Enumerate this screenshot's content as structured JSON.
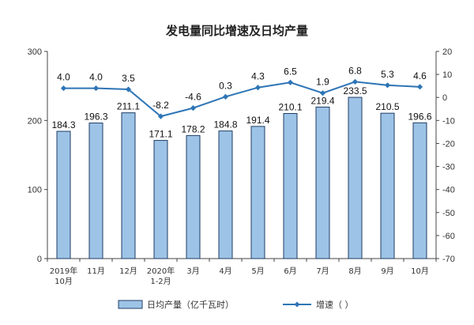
{
  "chart_data": {
    "type": "bar+line",
    "title": "发电量同比增速及日均产量",
    "categories": [
      [
        "2019年",
        "10月"
      ],
      [
        "11月"
      ],
      [
        "12月"
      ],
      [
        "2020年",
        "1-2月"
      ],
      [
        "3月"
      ],
      [
        "4月"
      ],
      [
        "5月"
      ],
      [
        "6月"
      ],
      [
        "7月"
      ],
      [
        "8月"
      ],
      [
        "9月"
      ],
      [
        "10月"
      ]
    ],
    "series": [
      {
        "name": "日均产量（亿千瓦时）",
        "type": "bar",
        "axis": "left",
        "color": "#9dc3e6",
        "stroke": "#1f3d66",
        "values": [
          184.3,
          196.3,
          211.1,
          171.1,
          178.2,
          184.8,
          191.4,
          210.1,
          219.4,
          233.5,
          210.5,
          196.6
        ],
        "labels": [
          "184.3",
          "196.3",
          "211.1",
          "171.1",
          "178.2",
          "184.8",
          "191.4",
          "210.1",
          "219.4",
          "233.5",
          "210.5",
          "196.6"
        ]
      },
      {
        "name": "增速（  ）",
        "type": "line",
        "axis": "right",
        "color": "#2e75b6",
        "values": [
          4.0,
          4.0,
          3.5,
          -8.2,
          -4.6,
          0.3,
          4.3,
          6.5,
          1.9,
          6.8,
          5.3,
          4.6
        ],
        "labels": [
          "4.0",
          "4.0",
          "3.5",
          "-8.2",
          "-4.6",
          "0.3",
          "4.3",
          "6.5",
          "1.9",
          "6.8",
          "5.3",
          "4.6"
        ]
      }
    ],
    "y_left": {
      "range": [
        0,
        300
      ],
      "ticks": [
        "0",
        "100",
        "200",
        "300"
      ],
      "tick_values": [
        0,
        100,
        200,
        300
      ]
    },
    "y_right": {
      "range": [
        -70,
        20
      ],
      "ticks": [
        "20",
        "10",
        "0",
        "-10",
        "-20",
        "-30",
        "-40",
        "-50",
        "-60",
        "-70"
      ],
      "tick_values": [
        20,
        10,
        0,
        -10,
        -20,
        -30,
        -40,
        -50,
        -60,
        -70
      ]
    },
    "grid": false,
    "legend": "bottom"
  }
}
